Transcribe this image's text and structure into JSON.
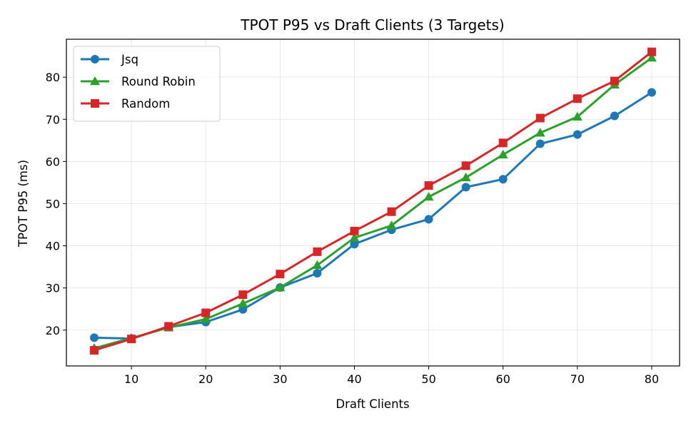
{
  "chart_data": {
    "type": "line",
    "title": "TPOT P95 vs Draft Clients (3 Targets)",
    "xlabel": "Draft Clients",
    "ylabel": "TPOT P95 (ms)",
    "xlim": [
      1.25,
      83.75
    ],
    "ylim": [
      11.5,
      89
    ],
    "xticks": [
      10,
      20,
      30,
      40,
      50,
      60,
      70,
      80
    ],
    "yticks": [
      20,
      30,
      40,
      50,
      60,
      70,
      80
    ],
    "grid": true,
    "legend_position": "upper left",
    "x": [
      5,
      10,
      15,
      20,
      25,
      30,
      35,
      40,
      45,
      50,
      55,
      60,
      65,
      70,
      75,
      80
    ],
    "series": [
      {
        "name": "Jsq",
        "color": "#1f77b4",
        "marker": "circle",
        "values": [
          18.2,
          18.0,
          20.7,
          21.9,
          24.9,
          30.1,
          33.5,
          40.4,
          43.8,
          46.3,
          53.9,
          55.8,
          64.2,
          66.4,
          70.8,
          76.4
        ]
      },
      {
        "name": "Round Robin",
        "color": "#2ca02c",
        "marker": "triangle",
        "values": [
          15.7,
          18.1,
          20.6,
          22.6,
          26.3,
          30.1,
          35.4,
          41.9,
          44.8,
          51.6,
          56.2,
          61.6,
          66.8,
          70.6,
          78.2,
          84.6
        ]
      },
      {
        "name": "Random",
        "color": "#d62728",
        "marker": "square",
        "values": [
          15.2,
          17.9,
          20.9,
          24.1,
          28.4,
          33.3,
          38.6,
          43.5,
          48.1,
          54.3,
          59.0,
          64.4,
          70.3,
          74.9,
          79.1,
          86.0
        ]
      }
    ]
  }
}
